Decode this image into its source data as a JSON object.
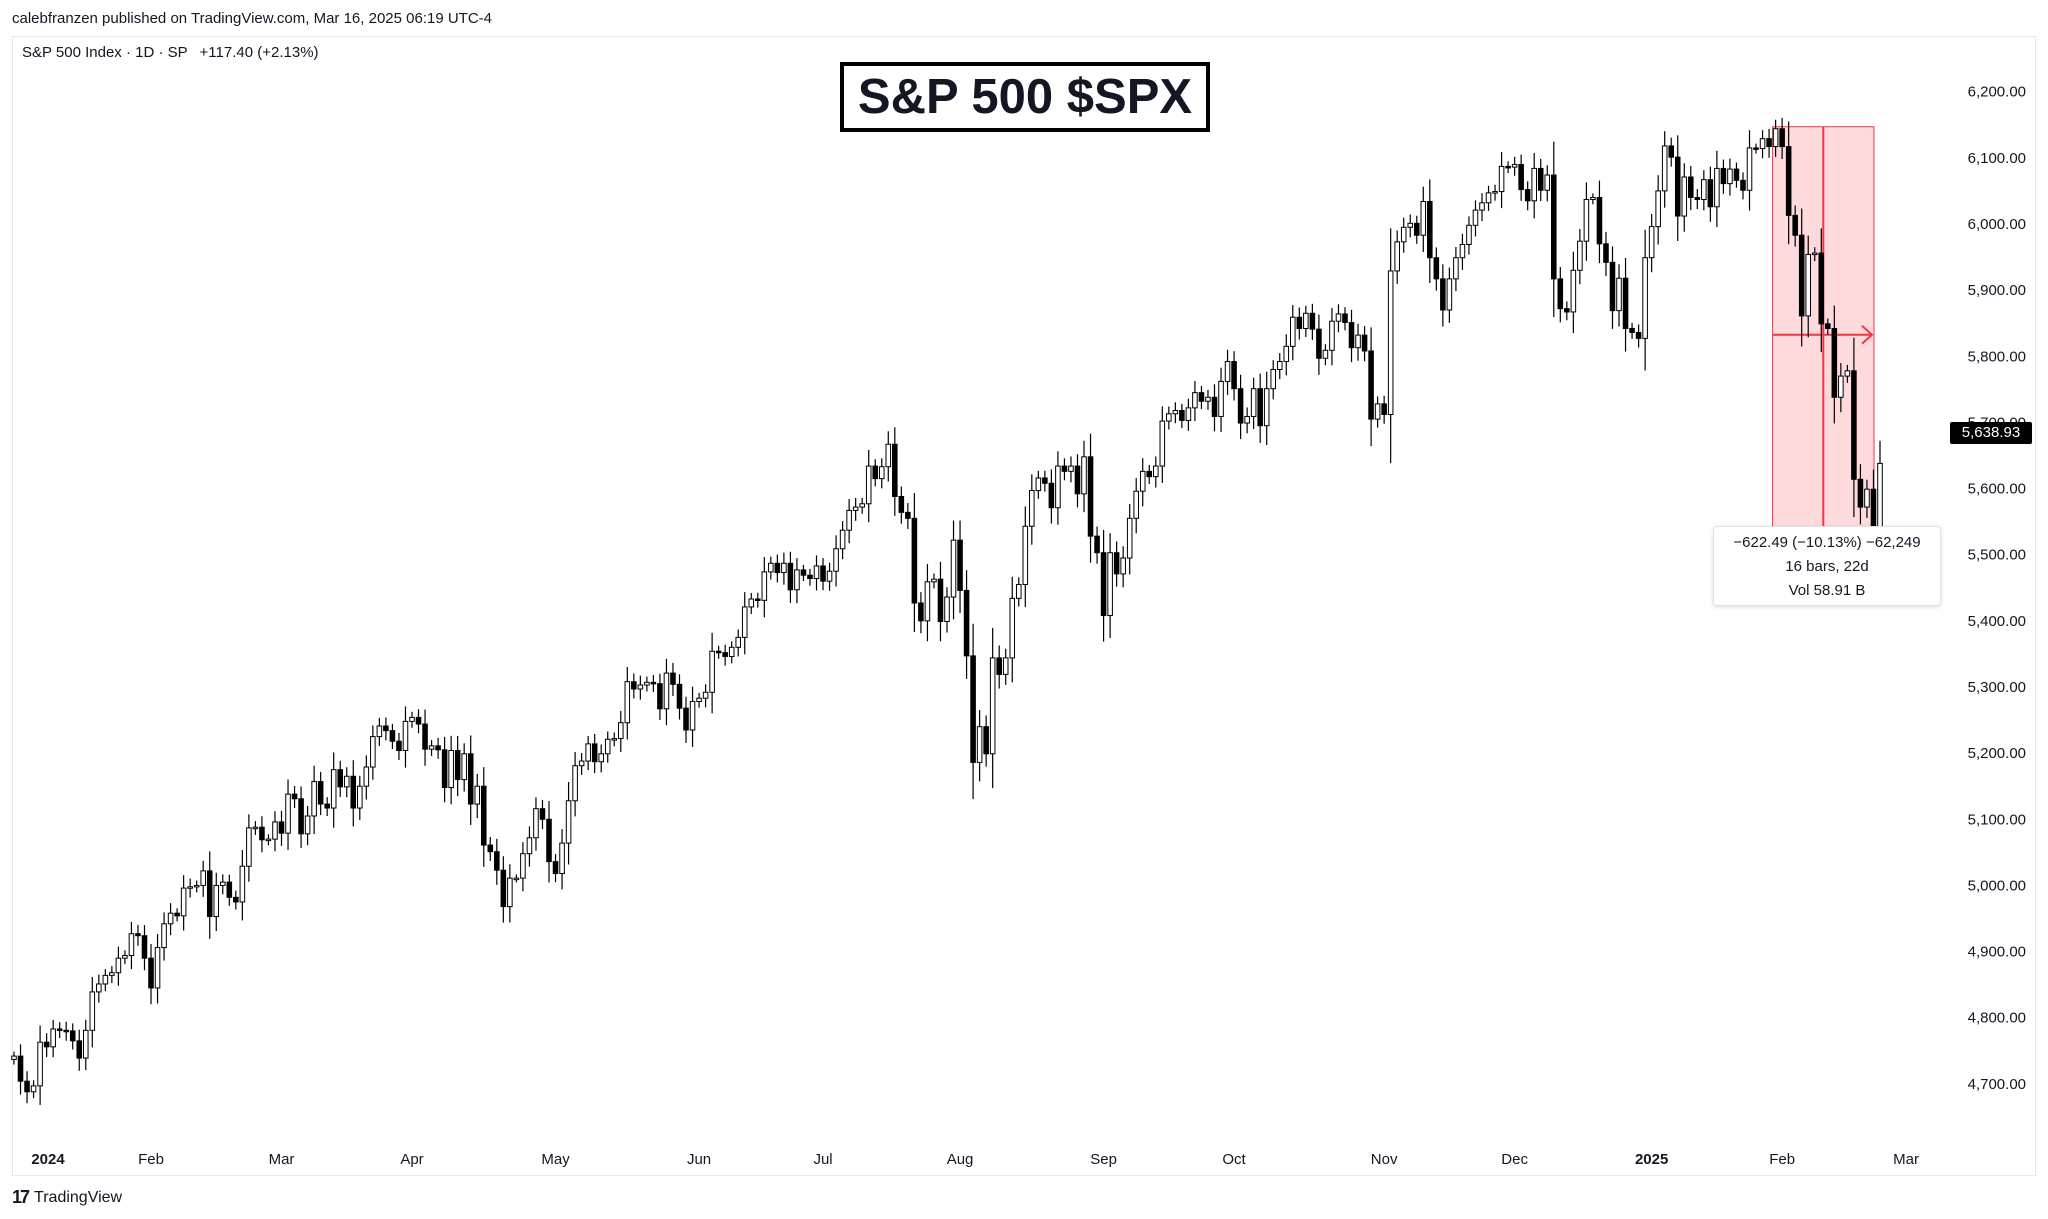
{
  "header": {
    "published": "calebfranzen published on TradingView.com, Mar 16, 2025 06:19 UTC-4",
    "symbol": "S&P 500 Index · 1D · SP",
    "change": "+117.40 (+2.13%)"
  },
  "title": "S&P 500 $SPX",
  "last_price": "5,638.93",
  "measure": {
    "line1": "−622.49 (−10.13%) −62,249",
    "line2": "16 bars, 22d",
    "line3": "Vol 58.91 B"
  },
  "footer": {
    "logo_glyph": "17",
    "brand": "TradingView"
  },
  "colors": {
    "candle": "#000000",
    "measure_fill": "#ffcdd2",
    "measure_stroke": "#f23645"
  },
  "chart_data": {
    "type": "candlestick",
    "title": "S&P 500 $SPX",
    "ylim": [
      4600,
      6260
    ],
    "y_ticks": [
      4700,
      4800,
      4900,
      5000,
      5100,
      5200,
      5300,
      5400,
      5500,
      5600,
      5700,
      5800,
      5900,
      6000,
      6100,
      6200
    ],
    "y_tick_labels": [
      "4,700.00",
      "4,800.00",
      "4,900.00",
      "5,000.00",
      "5,100.00",
      "5,200.00",
      "5,300.00",
      "5,400.00",
      "5,500.00",
      "5,600.00",
      "5,700.00",
      "5,800.00",
      "5,900.00",
      "6,000.00",
      "6,100.00",
      "6,200.00"
    ],
    "x_month_labels": [
      {
        "label": "2024",
        "bold": true,
        "day": 0
      },
      {
        "label": "Feb",
        "bold": false,
        "day": 21
      },
      {
        "label": "Mar",
        "bold": false,
        "day": 41
      },
      {
        "label": "Apr",
        "bold": false,
        "day": 61
      },
      {
        "label": "May",
        "bold": false,
        "day": 83
      },
      {
        "label": "Jun",
        "bold": false,
        "day": 105
      },
      {
        "label": "Jul",
        "bold": false,
        "day": 124
      },
      {
        "label": "Aug",
        "bold": false,
        "day": 145
      },
      {
        "label": "Sep",
        "bold": false,
        "day": 167
      },
      {
        "label": "Oct",
        "bold": false,
        "day": 187
      },
      {
        "label": "Nov",
        "bold": false,
        "day": 210
      },
      {
        "label": "Dec",
        "bold": false,
        "day": 230
      },
      {
        "label": "2025",
        "bold": true,
        "day": 251
      },
      {
        "label": "Feb",
        "bold": false,
        "day": 271
      },
      {
        "label": "Mar",
        "bold": false,
        "day": 290
      }
    ],
    "closes": [
      4742,
      4704,
      4688,
      4697,
      4763,
      4756,
      4783,
      4781,
      4780,
      4765,
      4739,
      4781,
      4839,
      4851,
      4864,
      4868,
      4890,
      4894,
      4927,
      4924,
      4890,
      4845,
      4906,
      4942,
      4958,
      4954,
      4996,
      4998,
      5000,
      5022,
      4953,
      5000,
      5005,
      4982,
      4975,
      5029,
      5087,
      5088,
      5069,
      5070,
      5096,
      5079,
      5138,
      5131,
      5078,
      5105,
      5157,
      5123,
      5117,
      5175,
      5149,
      5165,
      5117,
      5150,
      5179,
      5225,
      5241,
      5234,
      5218,
      5204,
      5248,
      5254,
      5244,
      5206,
      5211,
      5205,
      5148,
      5204,
      5160,
      5199,
      5123,
      5150,
      5061,
      5051,
      5023,
      4968,
      5011,
      5011,
      5048,
      5072,
      5116,
      5100,
      5036,
      5018,
      5064,
      5128,
      5181,
      5188,
      5214,
      5187,
      5199,
      5221,
      5222,
      5246,
      5308,
      5297,
      5303,
      5307,
      5305,
      5267,
      5321,
      5304,
      5268,
      5235,
      5278,
      5283,
      5292,
      5354,
      5352,
      5346,
      5360,
      5375,
      5421,
      5433,
      5431,
      5474,
      5487,
      5473,
      5487,
      5447,
      5477,
      5469,
      5464,
      5483,
      5460,
      5475,
      5509,
      5537,
      5567,
      5572,
      5577,
      5634,
      5615,
      5633,
      5667,
      5588,
      5564,
      5555,
      5427,
      5400,
      5459,
      5463,
      5399,
      5436,
      5522,
      5446,
      5347,
      5186,
      5240,
      5199,
      5344,
      5319,
      5344,
      5434,
      5455,
      5543,
      5597,
      5616,
      5608,
      5571,
      5634,
      5626,
      5634,
      5592,
      5648,
      5528,
      5503,
      5408,
      5503,
      5471,
      5495,
      5555,
      5596,
      5626,
      5618,
      5634,
      5702,
      5713,
      5718,
      5703,
      5722,
      5745,
      5732,
      5738,
      5709,
      5762,
      5792,
      5751,
      5699,
      5709,
      5751,
      5695,
      5751,
      5780,
      5792,
      5815,
      5859,
      5842,
      5865,
      5841,
      5797,
      5809,
      5853,
      5864,
      5851,
      5813,
      5832,
      5808,
      5705,
      5728,
      5712,
      5929,
      5973,
      5995,
      6001,
      5983,
      6034,
      5949,
      5917,
      5870,
      5917,
      5949,
      5969,
      5998,
      6021,
      6032,
      6047,
      6049,
      6087,
      6086,
      6090,
      6052,
      6035,
      6084,
      6051,
      6074,
      5917,
      5872,
      5867,
      5930,
      5974,
      6037,
      6040,
      5970,
      5942,
      5869,
      5918,
      5842,
      5836,
      5827,
      5949,
      5996,
      6050,
      6118,
      6101,
      6012,
      6071,
      6040,
      6037,
      6067,
      6026,
      6084,
      6061,
      6083,
      6066,
      6051,
      6115,
      6114,
      6129,
      6117,
      6144,
      6117,
      6013,
      5983,
      5861,
      5954,
      5956,
      5849,
      5842,
      5738,
      5770,
      5778,
      5614,
      5572,
      5599,
      5521,
      5638
    ]
  }
}
